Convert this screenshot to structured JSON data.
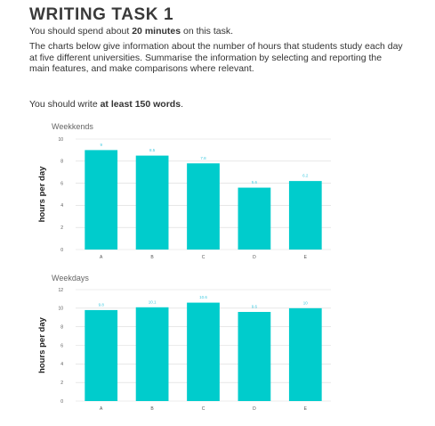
{
  "header": {
    "title": "WRITING TASK 1",
    "time_pre": "You should spend about ",
    "time_bold": "20 minutes",
    "time_post": " on this task.",
    "prompt": "The charts below give information about the number of hours that students study each day at five different universities. Summarise the information by selecting and reporting the main features, and make comparisons where relevant.",
    "words_pre": "You should write ",
    "words_bold": "at least 150 words",
    "words_post": "."
  },
  "colors": {
    "bar": "#00cccc",
    "grid": "#d9d9d9",
    "data_label": "#3ec9e0"
  },
  "chart_data": [
    {
      "type": "bar",
      "title": "Weekkends",
      "ylabel": "hours per day",
      "xlabel": "",
      "categories": [
        "A",
        "B",
        "C",
        "D",
        "E"
      ],
      "values": [
        9,
        8.5,
        7.8,
        5.6,
        6.2
      ],
      "value_labels": [
        "9",
        "8.5",
        "7.8",
        "5.6",
        "6.2"
      ],
      "ylim": [
        0,
        10
      ],
      "yticks": [
        0,
        2,
        4,
        6,
        8,
        10
      ],
      "grid": true,
      "legend": "none"
    },
    {
      "type": "bar",
      "title": "Weekdays",
      "ylabel": "hours per day",
      "xlabel": "",
      "categories": [
        "A",
        "B",
        "C",
        "D",
        "E"
      ],
      "values": [
        9.8,
        10.1,
        10.6,
        9.6,
        10
      ],
      "value_labels": [
        "9.8",
        "10.1",
        "10.6",
        "9.6",
        "10"
      ],
      "ylim": [
        0,
        12
      ],
      "yticks": [
        0,
        2,
        4,
        6,
        8,
        10,
        12
      ],
      "grid": true,
      "legend": "none"
    }
  ]
}
